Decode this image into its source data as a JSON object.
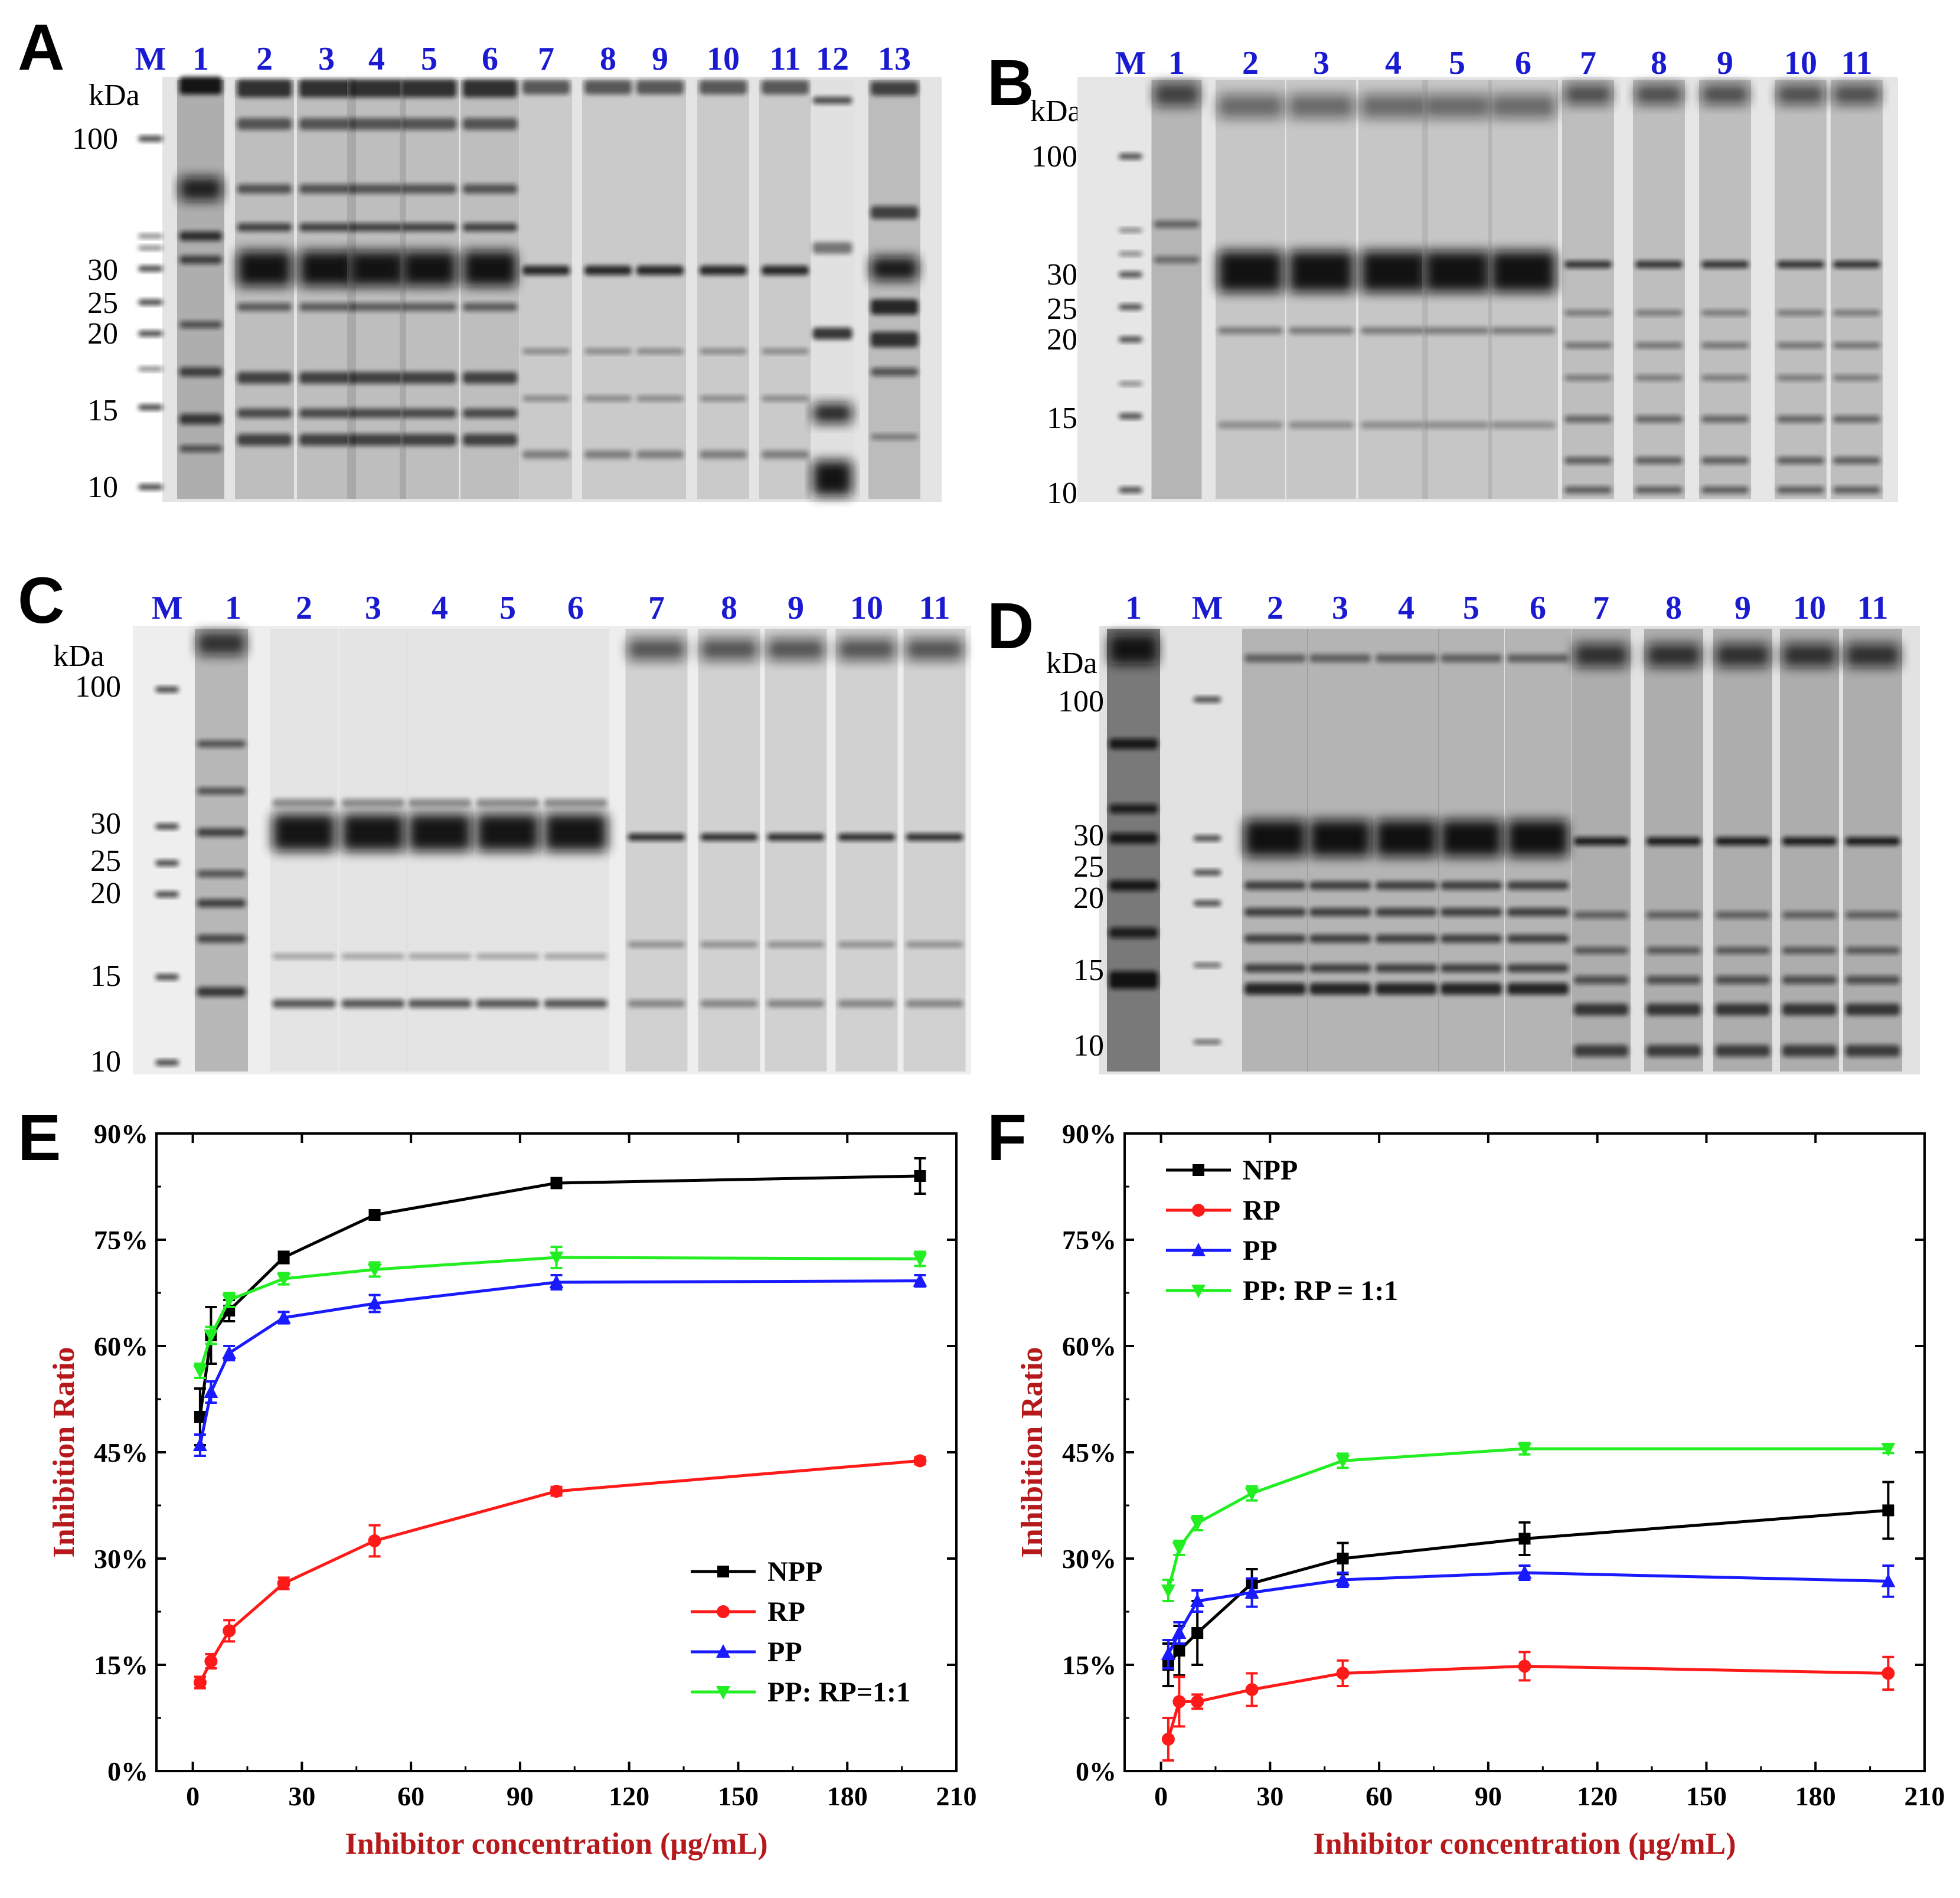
{
  "gels": [
    {
      "label": "A",
      "kda_label": "kDa",
      "lane_labels": [
        "M",
        "1",
        "2",
        "3",
        "4",
        "5",
        "6",
        "7",
        "8",
        "9",
        "10",
        "11",
        "12",
        "13"
      ],
      "mw_labels": [
        "100",
        "30",
        "25",
        "20",
        "15",
        "10"
      ]
    },
    {
      "label": "B",
      "kda_label": "kDa",
      "lane_labels": [
        "M",
        "1",
        "2",
        "3",
        "4",
        "5",
        "6",
        "7",
        "8",
        "9",
        "10",
        "11"
      ],
      "mw_labels": [
        "100",
        "30",
        "25",
        "20",
        "15",
        "10"
      ]
    },
    {
      "label": "C",
      "kda_label": "kDa",
      "lane_labels": [
        "M",
        "1",
        "2",
        "3",
        "4",
        "5",
        "6",
        "7",
        "8",
        "9",
        "10",
        "11"
      ],
      "mw_labels": [
        "100",
        "30",
        "25",
        "20",
        "15",
        "10"
      ]
    },
    {
      "label": "D",
      "kda_label": "kDa",
      "lane_labels": [
        "1",
        "M",
        "2",
        "3",
        "4",
        "5",
        "6",
        "7",
        "8",
        "9",
        "10",
        "11"
      ],
      "mw_labels": [
        "100",
        "30",
        "25",
        "20",
        "15",
        "10"
      ]
    }
  ],
  "chart_data": [
    {
      "panel": "E",
      "type": "line",
      "xlabel": "Inhibitor concentration (μg/mL)",
      "ylabel": "Inhibition Ratio",
      "xlim": [
        -10,
        210
      ],
      "ylim": [
        0,
        90
      ],
      "xticks": [
        "0",
        "30",
        "60",
        "90",
        "120",
        "150",
        "180",
        "210"
      ],
      "yticks": [
        "0%",
        "15%",
        "30%",
        "45%",
        "60%",
        "75%",
        "90%"
      ],
      "legend_position": "bottom-right",
      "x": [
        2,
        5,
        10,
        25,
        50,
        100,
        200
      ],
      "series": [
        {
          "name": "NPP",
          "color": "#000000",
          "marker": "square",
          "values": [
            50,
            61.5,
            65,
            72.5,
            78.5,
            83,
            84
          ],
          "errors": [
            4,
            4,
            1.5,
            0.8,
            0.6,
            0.7,
            2.5
          ]
        },
        {
          "name": "RP",
          "color": "#ff1a1a",
          "marker": "circle",
          "values": [
            12.5,
            15.5,
            19.8,
            26.5,
            32.5,
            39.5,
            43.8
          ],
          "errors": [
            0.8,
            1,
            1.5,
            0.8,
            2.2,
            0.6,
            0.5
          ]
        },
        {
          "name": "PP",
          "color": "#1a1aff",
          "marker": "triangle-up",
          "values": [
            46,
            53.5,
            59,
            64,
            66,
            69,
            69.2
          ],
          "errors": [
            1.5,
            1.5,
            1,
            0.8,
            1.2,
            1,
            0.8
          ]
        },
        {
          "name": "PP: RP=1:1",
          "color": "#22ee22",
          "marker": "triangle-down",
          "values": [
            56.5,
            61.5,
            66.5,
            69.5,
            70.8,
            72.5,
            72.3
          ],
          "errors": [
            1,
            1.2,
            1,
            0.8,
            1,
            1.5,
            1
          ]
        }
      ]
    },
    {
      "panel": "F",
      "type": "line",
      "xlabel": "Inhibitor concentration (μg/mL)",
      "ylabel": "Inhibition Ratio",
      "xlim": [
        -10,
        210
      ],
      "ylim": [
        0,
        90
      ],
      "xticks": [
        "0",
        "30",
        "60",
        "90",
        "120",
        "150",
        "180",
        "210"
      ],
      "yticks": [
        "0%",
        "15%",
        "30%",
        "45%",
        "60%",
        "75%",
        "90%"
      ],
      "legend_position": "top-left",
      "x": [
        2,
        5,
        10,
        25,
        50,
        100,
        200
      ],
      "series": [
        {
          "name": "NPP",
          "color": "#000000",
          "marker": "square",
          "values": [
            15,
            17,
            19.5,
            26.5,
            30,
            32.8,
            36.8
          ],
          "errors": [
            3,
            3.5,
            4.5,
            2,
            2.2,
            2.3,
            4
          ]
        },
        {
          "name": "RP",
          "color": "#ff1a1a",
          "marker": "circle",
          "values": [
            4.5,
            9.8,
            9.8,
            11.5,
            13.8,
            14.8,
            13.8
          ],
          "errors": [
            3,
            3.5,
            1,
            2.3,
            1.8,
            2,
            2.3
          ]
        },
        {
          "name": "PP",
          "color": "#1a1aff",
          "marker": "triangle-up",
          "values": [
            16.5,
            19.5,
            24,
            25.2,
            27,
            28,
            26.8
          ],
          "errors": [
            2,
            1.5,
            1.5,
            2,
            1,
            1,
            2.2
          ]
        },
        {
          "name": "PP: RP = 1:1",
          "color": "#22ee22",
          "marker": "triangle-down",
          "values": [
            25.5,
            31.5,
            35,
            39.2,
            43.8,
            45.5,
            45.5
          ],
          "errors": [
            1.5,
            1,
            1,
            1,
            1,
            0.8,
            0.6
          ]
        }
      ]
    }
  ]
}
